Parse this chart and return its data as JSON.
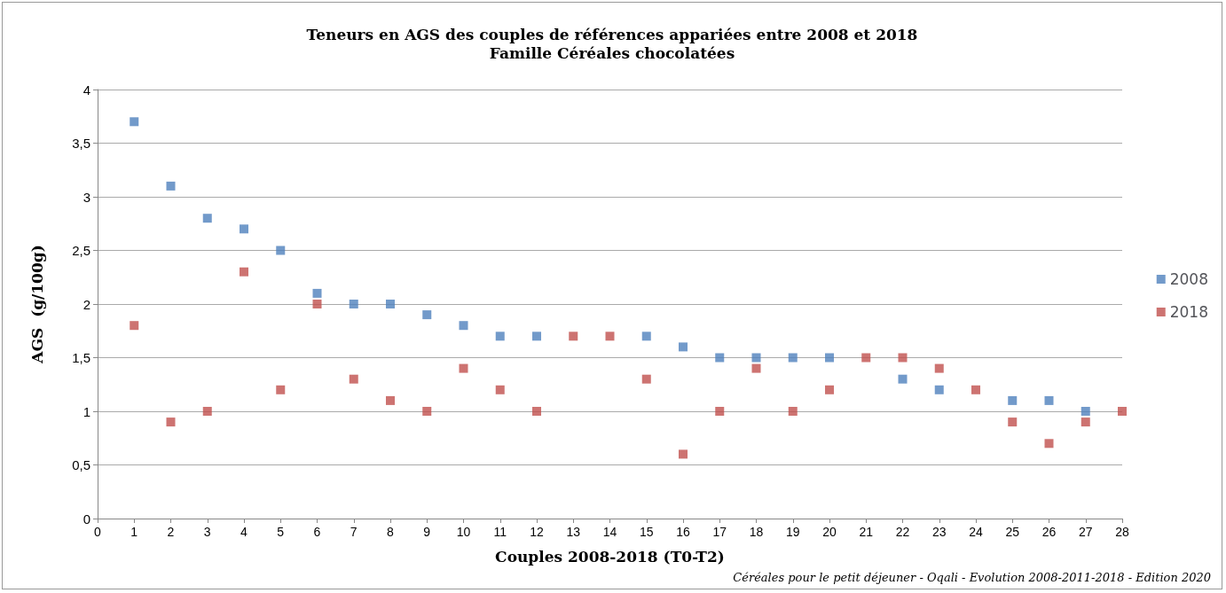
{
  "chart_data": {
    "type": "scatter",
    "title": "Teneurs en AGS des couples de références appariées entre 2008 et 2018",
    "subtitle": "Famille Céréales chocolatées",
    "xlabel": "Couples 2008-2018 (T0-T2)",
    "ylabel": "AGS  (g/100g)",
    "annotations": [
      "Céréales pour le petit déjeuner - Oqali - Evolution 2008-2011-2018 - Edition 2020"
    ],
    "x": [
      1,
      2,
      3,
      4,
      5,
      6,
      7,
      8,
      9,
      10,
      11,
      12,
      13,
      14,
      15,
      16,
      17,
      18,
      19,
      20,
      21,
      22,
      23,
      24,
      25,
      26,
      27,
      28
    ],
    "series": [
      {
        "name": "2008",
        "color": "#4f81bd",
        "values": [
          3.7,
          3.1,
          2.8,
          2.7,
          2.5,
          2.1,
          2.0,
          2.0,
          1.9,
          1.8,
          1.7,
          1.7,
          null,
          null,
          1.7,
          1.6,
          1.5,
          1.5,
          1.5,
          1.5,
          null,
          1.3,
          1.2,
          null,
          1.1,
          1.1,
          1.0,
          null
        ]
      },
      {
        "name": "2018",
        "color": "#c0504d",
        "values": [
          1.8,
          0.9,
          1.0,
          2.3,
          1.2,
          2.0,
          1.3,
          1.1,
          1.0,
          1.4,
          1.2,
          1.0,
          1.7,
          1.7,
          1.3,
          0.6,
          1.0,
          1.4,
          1.0,
          1.2,
          1.5,
          1.5,
          1.4,
          1.2,
          0.9,
          0.7,
          0.9,
          1.0
        ]
      }
    ],
    "xlim": [
      0,
      28
    ],
    "xticks": [
      0,
      1,
      2,
      3,
      4,
      5,
      6,
      7,
      8,
      9,
      10,
      11,
      12,
      13,
      14,
      15,
      16,
      17,
      18,
      19,
      20,
      21,
      22,
      23,
      24,
      25,
      26,
      27,
      28
    ],
    "ylim": [
      0,
      4
    ],
    "yticks": [
      0,
      {
        "value": 0.5,
        "label": "0,5"
      },
      1,
      {
        "value": 1.5,
        "label": "1,5"
      },
      2,
      {
        "value": 2.5,
        "label": "2,5"
      },
      3,
      {
        "value": 3.5,
        "label": "3,5"
      },
      4
    ],
    "grid": "y",
    "legend": "right",
    "marker": "square"
  }
}
